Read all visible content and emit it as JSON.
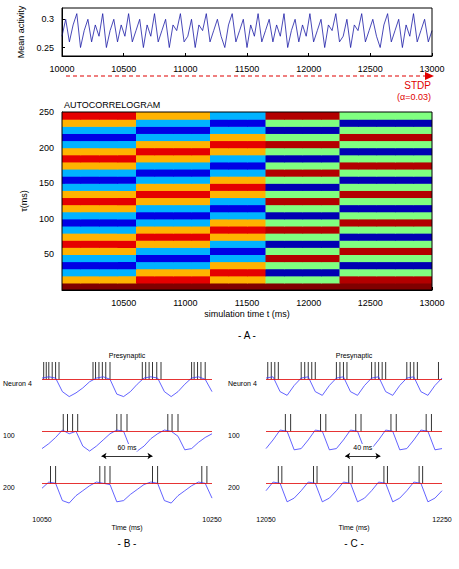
{
  "chart_data": [
    {
      "type": "line",
      "y_label": "Mean activity",
      "color": "#1a1aa6",
      "x": [
        10000,
        10030,
        10060,
        10090,
        10120,
        10150,
        10180,
        10210,
        10240,
        10270,
        10300,
        10330,
        10360,
        10390,
        10420,
        10450,
        10480,
        10510,
        10540,
        10570,
        10600,
        10630,
        10660,
        10690,
        10720,
        10750,
        10780,
        10810,
        10840,
        10870,
        10900,
        10930,
        10960,
        10990,
        11020,
        11050,
        11080,
        11110,
        11140,
        11170,
        11200,
        11230,
        11260,
        11290,
        11320,
        11350,
        11380,
        11410,
        11440,
        11470,
        11500,
        11530,
        11560,
        11590,
        11620,
        11650,
        11680,
        11710,
        11740,
        11770,
        11800,
        11830,
        11860,
        11890,
        11920,
        11950,
        11980,
        12010,
        12040,
        12070,
        12100,
        12130,
        12160,
        12190,
        12220,
        12250,
        12280,
        12310,
        12340,
        12370,
        12400,
        12430,
        12460,
        12490,
        12520,
        12550,
        12580,
        12610,
        12640,
        12670,
        12700,
        12730,
        12760,
        12790,
        12820,
        12850,
        12880,
        12910,
        12940,
        12970,
        13000
      ],
      "values": [
        0.27,
        0.3,
        0.26,
        0.29,
        0.31,
        0.25,
        0.28,
        0.3,
        0.26,
        0.29,
        0.27,
        0.31,
        0.25,
        0.28,
        0.3,
        0.26,
        0.29,
        0.27,
        0.31,
        0.26,
        0.28,
        0.3,
        0.25,
        0.29,
        0.27,
        0.31,
        0.26,
        0.28,
        0.3,
        0.25,
        0.29,
        0.28,
        0.31,
        0.26,
        0.27,
        0.3,
        0.25,
        0.29,
        0.28,
        0.31,
        0.26,
        0.28,
        0.3,
        0.27,
        0.25,
        0.29,
        0.31,
        0.26,
        0.28,
        0.3,
        0.25,
        0.29,
        0.27,
        0.31,
        0.26,
        0.28,
        0.3,
        0.26,
        0.29,
        0.27,
        0.31,
        0.25,
        0.28,
        0.3,
        0.26,
        0.29,
        0.27,
        0.31,
        0.26,
        0.28,
        0.3,
        0.25,
        0.29,
        0.28,
        0.31,
        0.26,
        0.27,
        0.3,
        0.25,
        0.29,
        0.28,
        0.31,
        0.26,
        0.28,
        0.3,
        0.27,
        0.25,
        0.29,
        0.31,
        0.26,
        0.28,
        0.3,
        0.25,
        0.29,
        0.27,
        0.31,
        0.26,
        0.28,
        0.3,
        0.26,
        0.28
      ],
      "xlim": [
        10000,
        13000
      ],
      "xticks": [
        10000,
        10500,
        11000,
        11500,
        12000,
        12500,
        13000
      ],
      "ylim": [
        0.235,
        0.32
      ],
      "yticks": [
        0.25,
        0.3
      ]
    },
    {
      "type": "heatmap",
      "title": "AUTOCORRELOGRAM",
      "x_label": "simulation time t (ms)",
      "y_label": "τ(ms)",
      "annotation": "STDP",
      "annotation_detail": "(α=0.03)",
      "panel": "- A -",
      "x": [
        10075,
        10225,
        10375,
        10525,
        10675,
        10825,
        10975,
        11125,
        11275,
        11425,
        11575,
        11725,
        11875,
        12025,
        12175,
        12325,
        12475,
        12625,
        12775,
        12925
      ],
      "y": [
        5,
        15,
        25,
        35,
        45,
        55,
        65,
        75,
        85,
        95,
        105,
        115,
        125,
        135,
        145,
        155,
        165,
        175,
        185,
        195,
        205,
        215,
        225,
        235,
        245
      ],
      "z": [
        [
          1,
          1,
          1,
          1,
          1,
          1,
          1,
          1,
          1,
          1,
          1,
          1,
          1,
          1,
          1,
          1,
          1,
          1,
          1,
          1
        ],
        [
          0.4,
          0.4,
          0.4,
          0.4,
          0.8,
          0.8,
          0.8,
          0.8,
          0.4,
          0.4,
          0.4,
          0,
          0,
          0,
          0,
          0.9,
          0.9,
          0.9,
          0.9,
          0.9
        ],
        [
          -0.4,
          -0.4,
          -0.4,
          -0.4,
          0.4,
          0.4,
          0.4,
          0.4,
          0.8,
          0.8,
          0.8,
          -0.9,
          -0.9,
          -0.9,
          -0.9,
          0,
          0,
          0,
          0,
          0
        ],
        [
          -0.8,
          -0.8,
          -0.8,
          -0.8,
          -0.4,
          -0.4,
          -0.4,
          -0.4,
          0.4,
          0.4,
          0.4,
          0,
          0,
          0,
          0,
          -0.9,
          -0.9,
          -0.9,
          -0.9,
          -0.9
        ],
        [
          -0.4,
          -0.4,
          -0.4,
          -0.4,
          -0.8,
          -0.8,
          -0.8,
          -0.8,
          -0.4,
          -0.4,
          -0.4,
          0.9,
          0.9,
          0.9,
          0.9,
          0,
          0,
          0,
          0,
          0
        ],
        [
          0.4,
          0.4,
          0.4,
          0.4,
          -0.4,
          -0.4,
          -0.4,
          -0.4,
          -0.8,
          -0.8,
          -0.8,
          0,
          0,
          0,
          0,
          0.9,
          0.9,
          0.9,
          0.9,
          0.9
        ],
        [
          0.8,
          0.8,
          0.8,
          0.8,
          0.4,
          0.4,
          0.4,
          0.4,
          -0.4,
          -0.4,
          -0.4,
          -0.9,
          -0.9,
          -0.9,
          -0.9,
          0,
          0,
          0,
          0,
          0
        ],
        [
          0.4,
          0.4,
          0.4,
          0.4,
          0.8,
          0.8,
          0.8,
          0.8,
          0.4,
          0.4,
          0.4,
          0,
          0,
          0,
          0,
          -0.9,
          -0.9,
          -0.9,
          -0.9,
          -0.9
        ],
        [
          -0.4,
          -0.4,
          -0.4,
          -0.4,
          0.4,
          0.4,
          0.4,
          0.4,
          0.8,
          0.8,
          0.8,
          0.9,
          0.9,
          0.9,
          0.9,
          0,
          0,
          0,
          0,
          0
        ],
        [
          -0.8,
          -0.8,
          -0.8,
          -0.8,
          -0.4,
          -0.4,
          -0.4,
          -0.4,
          0.4,
          0.4,
          0.4,
          0,
          0,
          0,
          0,
          0.9,
          0.9,
          0.9,
          0.9,
          0.9
        ],
        [
          -0.4,
          -0.4,
          -0.4,
          -0.4,
          -0.8,
          -0.8,
          -0.8,
          -0.8,
          -0.4,
          -0.4,
          -0.4,
          -0.9,
          -0.9,
          -0.9,
          -0.9,
          0,
          0,
          0,
          0,
          0
        ],
        [
          0.4,
          0.4,
          0.4,
          0.4,
          -0.4,
          -0.4,
          -0.4,
          -0.4,
          -0.8,
          -0.8,
          -0.8,
          0,
          0,
          0,
          0,
          -0.9,
          -0.9,
          -0.9,
          -0.9,
          -0.9
        ],
        [
          0.8,
          0.8,
          0.8,
          0.8,
          0.4,
          0.4,
          0.4,
          0.4,
          -0.4,
          -0.4,
          -0.4,
          0.9,
          0.9,
          0.9,
          0.9,
          0,
          0,
          0,
          0,
          0
        ],
        [
          0.4,
          0.4,
          0.4,
          0.4,
          0.8,
          0.8,
          0.8,
          0.8,
          0.4,
          0.4,
          0.4,
          0,
          0,
          0,
          0,
          0.9,
          0.9,
          0.9,
          0.9,
          0.9
        ],
        [
          -0.4,
          -0.4,
          -0.4,
          -0.4,
          0.4,
          0.4,
          0.4,
          0.4,
          0.8,
          0.8,
          0.8,
          -0.9,
          -0.9,
          -0.9,
          -0.9,
          0,
          0,
          0,
          0,
          0
        ],
        [
          -0.8,
          -0.8,
          -0.8,
          -0.8,
          -0.4,
          -0.4,
          -0.4,
          -0.4,
          0.4,
          0.4,
          0.4,
          0,
          0,
          0,
          0,
          -0.9,
          -0.9,
          -0.9,
          -0.9,
          -0.9
        ],
        [
          -0.4,
          -0.4,
          -0.4,
          -0.4,
          -0.8,
          -0.8,
          -0.8,
          -0.8,
          -0.4,
          -0.4,
          -0.4,
          0.9,
          0.9,
          0.9,
          0.9,
          0,
          0,
          0,
          0,
          0
        ],
        [
          0.4,
          0.4,
          0.4,
          0.4,
          -0.4,
          -0.4,
          -0.4,
          -0.4,
          -0.8,
          -0.8,
          -0.8,
          0,
          0,
          0,
          0,
          0.9,
          0.9,
          0.9,
          0.9,
          0.9
        ],
        [
          0.8,
          0.8,
          0.8,
          0.8,
          0.4,
          0.4,
          0.4,
          0.4,
          -0.4,
          -0.4,
          -0.4,
          -0.9,
          -0.9,
          -0.9,
          -0.9,
          0,
          0,
          0,
          0,
          0
        ],
        [
          0.4,
          0.4,
          0.4,
          0.4,
          0.8,
          0.8,
          0.8,
          0.8,
          0.4,
          0.4,
          0.4,
          0,
          0,
          0,
          0,
          -0.9,
          -0.9,
          -0.9,
          -0.9,
          -0.9
        ],
        [
          -0.4,
          -0.4,
          -0.4,
          -0.4,
          0.4,
          0.4,
          0.4,
          0.4,
          0.8,
          0.8,
          0.8,
          0.9,
          0.9,
          0.9,
          0.9,
          0,
          0,
          0,
          0,
          0
        ],
        [
          -0.8,
          -0.8,
          -0.8,
          -0.8,
          -0.4,
          -0.4,
          -0.4,
          -0.4,
          0.4,
          0.4,
          0.4,
          0,
          0,
          0,
          0,
          0.9,
          0.9,
          0.9,
          0.9,
          0.9
        ],
        [
          -0.4,
          -0.4,
          -0.4,
          -0.4,
          -0.8,
          -0.8,
          -0.8,
          -0.8,
          -0.4,
          -0.4,
          -0.4,
          -0.9,
          -0.9,
          -0.9,
          -0.9,
          0,
          0,
          0,
          0,
          0
        ],
        [
          0.4,
          0.4,
          0.4,
          0.4,
          -0.4,
          -0.4,
          -0.4,
          -0.4,
          -0.8,
          -0.8,
          -0.8,
          0,
          0,
          0,
          0,
          -0.9,
          -0.9,
          -0.9,
          -0.9,
          -0.9
        ],
        [
          0.8,
          0.8,
          0.8,
          0.8,
          0.4,
          0.4,
          0.4,
          0.4,
          -0.4,
          -0.4,
          -0.4,
          0.9,
          0.9,
          0.9,
          0.9,
          0,
          0,
          0,
          0,
          0
        ]
      ],
      "zlim": [
        -1,
        1
      ],
      "xlim": [
        10000,
        13000
      ],
      "xticks": [
        10500,
        11000,
        11500,
        12000,
        12500,
        13000
      ],
      "ylim": [
        0,
        250
      ],
      "yticks": [
        50,
        100,
        150,
        200,
        250
      ]
    },
    {
      "type": "line",
      "panel": "- B -",
      "x_label": "Time (ms)",
      "annotation": "Presynaptic",
      "x": [
        10050,
        10058,
        10066,
        10074,
        10082,
        10090,
        10098,
        10106,
        10114,
        10122,
        10130,
        10138,
        10146,
        10154,
        10162,
        10170,
        10178,
        10186,
        10194,
        10202,
        10210,
        10218,
        10226,
        10234,
        10242,
        10250
      ],
      "xlim": [
        10050,
        10250
      ],
      "xticks": [
        10050,
        10250
      ],
      "ylim": [
        -0.2,
        1.5
      ],
      "tick_labels": "x",
      "threshold": 0.8,
      "span": {
        "label": "60 ms",
        "from": 10120,
        "to": 10180
      },
      "series": [
        {
          "name": "Neuron 4",
          "color": "#3b3bff",
          "values": [
            0.85,
            0.9,
            0.85,
            0.3,
            0.1,
            0.25,
            0.45,
            0.7,
            0.85,
            0.9,
            0.8,
            0.2,
            0.1,
            0.3,
            0.6,
            0.85,
            0.9,
            0.85,
            0.3,
            0.1,
            0.3,
            0.6,
            0.85,
            0.9,
            0.8,
            0.3
          ],
          "spikes": [
            10052,
            10055,
            10058,
            10062,
            10066,
            10070,
            10110,
            10113,
            10117,
            10121,
            10125,
            10130,
            10168,
            10172,
            10176,
            10180,
            10185,
            10190,
            10226,
            10229,
            10233,
            10237,
            10242
          ]
        },
        {
          "name": "100",
          "color": "#3b3bff",
          "values": [
            0.1,
            0.3,
            0.55,
            0.85,
            0.7,
            0.8,
            0.2,
            0.0,
            0.2,
            0.45,
            0.7,
            0.85,
            0.8,
            0.1,
            0.0,
            0.2,
            0.5,
            0.7,
            0.85,
            0.8,
            0.6,
            0.05,
            0.1,
            0.35,
            0.55,
            0.7
          ],
          "spikes": [
            10075,
            10080,
            10086,
            10092,
            10138,
            10143,
            10150,
            10198,
            10203,
            10210
          ]
        },
        {
          "name": "200",
          "color": "#3b3bff",
          "values": [
            0.6,
            0.85,
            0.8,
            0.1,
            0.0,
            0.3,
            0.5,
            0.7,
            0.85,
            0.8,
            0.75,
            0.05,
            0.1,
            0.35,
            0.55,
            0.75,
            0.85,
            0.8,
            0.1,
            0.0,
            0.3,
            0.5,
            0.7,
            0.85,
            0.8,
            0.2
          ],
          "spikes": [
            10060,
            10066,
            10118,
            10124,
            10130,
            10180,
            10186,
            10238,
            10244
          ]
        }
      ]
    },
    {
      "type": "line",
      "panel": "- C -",
      "x_label": "Time (ms)",
      "annotation": "Presynaptic",
      "x": [
        12050,
        12058,
        12066,
        12074,
        12082,
        12090,
        12098,
        12106,
        12114,
        12122,
        12130,
        12138,
        12146,
        12154,
        12162,
        12170,
        12178,
        12186,
        12194,
        12202,
        12210,
        12218,
        12226,
        12234,
        12242,
        12250
      ],
      "xlim": [
        12050,
        12250
      ],
      "xticks": [
        12050,
        12250
      ],
      "ylim": [
        -0.2,
        1.5
      ],
      "tick_labels": "x",
      "threshold": 0.8,
      "span": {
        "label": "40 ms",
        "from": 12140,
        "to": 12180
      },
      "series": [
        {
          "name": "Neuron 4",
          "color": "#3b3bff",
          "values": [
            0.85,
            0.9,
            0.3,
            0.15,
            0.55,
            0.85,
            0.9,
            0.3,
            0.15,
            0.55,
            0.85,
            0.9,
            0.3,
            0.15,
            0.55,
            0.85,
            0.9,
            0.3,
            0.15,
            0.55,
            0.85,
            0.9,
            0.3,
            0.15,
            0.55,
            0.85
          ],
          "spikes": [
            12052,
            12056,
            12060,
            12064,
            12090,
            12094,
            12098,
            12102,
            12106,
            12130,
            12134,
            12138,
            12142,
            12170,
            12174,
            12178,
            12182,
            12186,
            12210,
            12214,
            12218,
            12222,
            12246
          ]
        },
        {
          "name": "100",
          "color": "#3b3bff",
          "values": [
            0.1,
            0.45,
            0.85,
            0.8,
            0.05,
            0.1,
            0.45,
            0.85,
            0.8,
            0.05,
            0.1,
            0.45,
            0.85,
            0.8,
            0.05,
            0.1,
            0.45,
            0.85,
            0.8,
            0.05,
            0.1,
            0.45,
            0.85,
            0.8,
            0.05,
            0.1
          ],
          "spikes": [
            12072,
            12078,
            12112,
            12118,
            12152,
            12158,
            12192,
            12198,
            12232,
            12238
          ]
        },
        {
          "name": "200",
          "color": "#3b3bff",
          "values": [
            0.5,
            0.85,
            0.8,
            0.05,
            0.2,
            0.5,
            0.85,
            0.8,
            0.05,
            0.2,
            0.5,
            0.85,
            0.8,
            0.05,
            0.2,
            0.5,
            0.85,
            0.8,
            0.05,
            0.2,
            0.5,
            0.85,
            0.8,
            0.05,
            0.2,
            0.5
          ],
          "spikes": [
            12064,
            12068,
            12104,
            12108,
            12144,
            12148,
            12184,
            12188,
            12224,
            12228
          ]
        }
      ]
    }
  ]
}
